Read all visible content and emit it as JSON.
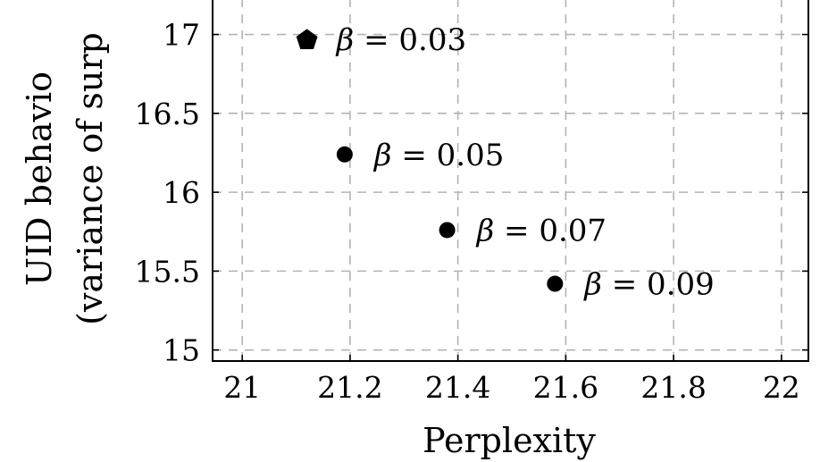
{
  "chart_data": {
    "type": "scatter",
    "xlabel": "Perplexity",
    "ylabel_line1": "UID behavio",
    "ylabel_line2": "(variance of surp",
    "xlim": [
      20.945,
      22.05
    ],
    "ylim": [
      14.93,
      17.23
    ],
    "x_ticks": [
      21,
      21.2,
      21.4,
      21.6,
      21.8,
      22
    ],
    "x_tick_labels": [
      "21",
      "21.2",
      "21.4",
      "21.6",
      "21.8",
      "22"
    ],
    "y_ticks": [
      15,
      15.5,
      16,
      16.5,
      17
    ],
    "y_tick_labels": [
      "15",
      "15.5",
      "16",
      "16.5",
      "17"
    ],
    "grid": true,
    "points": [
      {
        "x": 21.12,
        "y": 16.97,
        "marker": "pentagon",
        "label_symbol": "β",
        "label_rest": " = 0.03"
      },
      {
        "x": 21.19,
        "y": 16.24,
        "marker": "circle",
        "label_symbol": "β",
        "label_rest": " = 0.05"
      },
      {
        "x": 21.38,
        "y": 15.76,
        "marker": "circle",
        "label_symbol": "β",
        "label_rest": " = 0.07"
      },
      {
        "x": 21.58,
        "y": 15.42,
        "marker": "circle",
        "label_symbol": "β",
        "label_rest": " = 0.09"
      }
    ]
  }
}
